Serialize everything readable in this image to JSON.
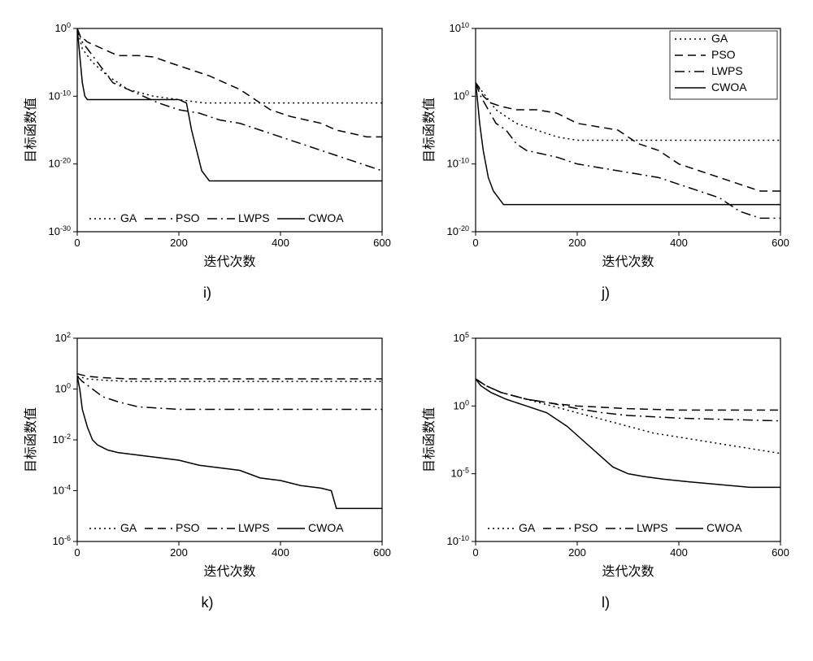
{
  "global": {
    "x_label": "迭代次数",
    "y_label": "目标函数值",
    "legend": [
      "GA",
      "PSO",
      "LWPS",
      "CWOA"
    ],
    "line_styles": [
      "dotted",
      "dashed",
      "dashdot",
      "solid"
    ],
    "line_color": "#000000",
    "background_color": "#ffffff",
    "axis_color": "#000000",
    "grid_color": "#e5e5e5",
    "label_fontsize": 16,
    "tick_fontsize": 13,
    "legend_fontsize": 14,
    "line_width": 1.5,
    "xlim": [
      0,
      600
    ],
    "xticks": [
      0,
      200,
      400,
      600
    ]
  },
  "charts": {
    "i": {
      "sub": "i)",
      "ylim": [
        -30,
        0
      ],
      "yticks": [
        -30,
        -20,
        -10,
        0
      ],
      "ytick_labels": [
        "10^-30",
        "10^-20",
        "10^-10",
        "10^0"
      ],
      "legend_pos": "bottom",
      "series": {
        "GA": [
          [
            0,
            0
          ],
          [
            10,
            -3
          ],
          [
            30,
            -5
          ],
          [
            60,
            -7
          ],
          [
            100,
            -9
          ],
          [
            150,
            -10
          ],
          [
            200,
            -10.5
          ],
          [
            250,
            -11
          ],
          [
            300,
            -11
          ],
          [
            400,
            -11
          ],
          [
            500,
            -11
          ],
          [
            600,
            -11
          ]
        ],
        "PSO": [
          [
            0,
            0
          ],
          [
            5,
            -1
          ],
          [
            20,
            -2
          ],
          [
            50,
            -3
          ],
          [
            80,
            -4
          ],
          [
            120,
            -4
          ],
          [
            150,
            -4.2
          ],
          [
            180,
            -5
          ],
          [
            220,
            -6
          ],
          [
            260,
            -7
          ],
          [
            290,
            -8
          ],
          [
            320,
            -9
          ],
          [
            340,
            -10
          ],
          [
            360,
            -11
          ],
          [
            380,
            -12
          ],
          [
            400,
            -12.5
          ],
          [
            420,
            -13
          ],
          [
            450,
            -13.5
          ],
          [
            480,
            -14
          ],
          [
            510,
            -15
          ],
          [
            540,
            -15.5
          ],
          [
            570,
            -16
          ],
          [
            600,
            -16
          ]
        ],
        "LWPS": [
          [
            0,
            0
          ],
          [
            10,
            -2
          ],
          [
            30,
            -4
          ],
          [
            50,
            -6
          ],
          [
            70,
            -8
          ],
          [
            100,
            -9
          ],
          [
            130,
            -10
          ],
          [
            160,
            -11
          ],
          [
            200,
            -12
          ],
          [
            240,
            -12.5
          ],
          [
            280,
            -13.5
          ],
          [
            320,
            -14
          ],
          [
            360,
            -15
          ],
          [
            400,
            -16
          ],
          [
            440,
            -17
          ],
          [
            480,
            -18
          ],
          [
            520,
            -19
          ],
          [
            560,
            -20
          ],
          [
            600,
            -21
          ]
        ],
        "CWOA": [
          [
            0,
            0
          ],
          [
            5,
            -4
          ],
          [
            10,
            -8
          ],
          [
            15,
            -10
          ],
          [
            20,
            -10.5
          ],
          [
            100,
            -10.5
          ],
          [
            150,
            -10.5
          ],
          [
            200,
            -10.5
          ],
          [
            215,
            -11
          ],
          [
            225,
            -15
          ],
          [
            235,
            -18
          ],
          [
            245,
            -21
          ],
          [
            255,
            -22
          ],
          [
            260,
            -22.5
          ],
          [
            300,
            -22.5
          ],
          [
            400,
            -22.5
          ],
          [
            500,
            -22.5
          ],
          [
            600,
            -22.5
          ]
        ]
      }
    },
    "j": {
      "sub": "j)",
      "ylim": [
        -20,
        10
      ],
      "yticks": [
        -20,
        -10,
        0,
        10
      ],
      "ytick_labels": [
        "10^-20",
        "10^-10",
        "10^0",
        "10^10"
      ],
      "legend_pos": "top-right",
      "series": {
        "GA": [
          [
            0,
            2
          ],
          [
            10,
            1
          ],
          [
            20,
            0
          ],
          [
            40,
            -2
          ],
          [
            60,
            -3
          ],
          [
            80,
            -4
          ],
          [
            120,
            -5
          ],
          [
            160,
            -6
          ],
          [
            200,
            -6.5
          ],
          [
            300,
            -6.5
          ],
          [
            400,
            -6.5
          ],
          [
            500,
            -6.5
          ],
          [
            600,
            -6.5
          ]
        ],
        "PSO": [
          [
            0,
            2
          ],
          [
            5,
            1.5
          ],
          [
            15,
            0
          ],
          [
            30,
            -1
          ],
          [
            50,
            -1.5
          ],
          [
            80,
            -2
          ],
          [
            120,
            -2
          ],
          [
            160,
            -2.5
          ],
          [
            200,
            -4
          ],
          [
            240,
            -4.5
          ],
          [
            280,
            -5
          ],
          [
            320,
            -7
          ],
          [
            360,
            -8
          ],
          [
            400,
            -10
          ],
          [
            440,
            -11
          ],
          [
            480,
            -12
          ],
          [
            520,
            -13
          ],
          [
            560,
            -14
          ],
          [
            600,
            -14
          ]
        ],
        "LWPS": [
          [
            0,
            2
          ],
          [
            10,
            0
          ],
          [
            25,
            -2
          ],
          [
            40,
            -4
          ],
          [
            60,
            -5
          ],
          [
            80,
            -7
          ],
          [
            100,
            -8
          ],
          [
            130,
            -8.5
          ],
          [
            160,
            -9
          ],
          [
            200,
            -10
          ],
          [
            240,
            -10.5
          ],
          [
            280,
            -11
          ],
          [
            320,
            -11.5
          ],
          [
            360,
            -12
          ],
          [
            400,
            -13
          ],
          [
            440,
            -14
          ],
          [
            480,
            -15
          ],
          [
            520,
            -17
          ],
          [
            560,
            -18
          ],
          [
            600,
            -18
          ]
        ],
        "CWOA": [
          [
            0,
            2
          ],
          [
            3,
            0
          ],
          [
            8,
            -4
          ],
          [
            15,
            -8
          ],
          [
            25,
            -12
          ],
          [
            35,
            -14
          ],
          [
            45,
            -15
          ],
          [
            55,
            -16
          ],
          [
            600,
            -16
          ]
        ]
      }
    },
    "k": {
      "sub": "k)",
      "ylim": [
        -6,
        2
      ],
      "yticks": [
        -6,
        -4,
        -2,
        0,
        2
      ],
      "ytick_labels": [
        "10^-6",
        "10^-4",
        "10^-2",
        "10^0",
        "10^2"
      ],
      "legend_pos": "bottom",
      "series": {
        "GA": [
          [
            0,
            0.5
          ],
          [
            20,
            0.4
          ],
          [
            50,
            0.35
          ],
          [
            100,
            0.3
          ],
          [
            200,
            0.3
          ],
          [
            300,
            0.3
          ],
          [
            400,
            0.3
          ],
          [
            500,
            0.3
          ],
          [
            600,
            0.3
          ]
        ],
        "PSO": [
          [
            0,
            0.6
          ],
          [
            20,
            0.5
          ],
          [
            50,
            0.45
          ],
          [
            100,
            0.4
          ],
          [
            200,
            0.4
          ],
          [
            300,
            0.4
          ],
          [
            400,
            0.4
          ],
          [
            500,
            0.4
          ],
          [
            600,
            0.4
          ]
        ],
        "LWPS": [
          [
            0,
            0.5
          ],
          [
            10,
            0.3
          ],
          [
            30,
            0
          ],
          [
            50,
            -0.3
          ],
          [
            80,
            -0.5
          ],
          [
            120,
            -0.7
          ],
          [
            200,
            -0.8
          ],
          [
            300,
            -0.8
          ],
          [
            400,
            -0.8
          ],
          [
            500,
            -0.8
          ],
          [
            600,
            -0.8
          ]
        ],
        "CWOA": [
          [
            0,
            0.5
          ],
          [
            5,
            0
          ],
          [
            10,
            -0.8
          ],
          [
            20,
            -1.5
          ],
          [
            30,
            -2
          ],
          [
            40,
            -2.2
          ],
          [
            60,
            -2.4
          ],
          [
            80,
            -2.5
          ],
          [
            120,
            -2.6
          ],
          [
            160,
            -2.7
          ],
          [
            200,
            -2.8
          ],
          [
            240,
            -3
          ],
          [
            280,
            -3.1
          ],
          [
            320,
            -3.2
          ],
          [
            360,
            -3.5
          ],
          [
            400,
            -3.6
          ],
          [
            440,
            -3.8
          ],
          [
            480,
            -3.9
          ],
          [
            500,
            -4
          ],
          [
            510,
            -4.7
          ],
          [
            560,
            -4.7
          ],
          [
            600,
            -4.7
          ]
        ]
      }
    },
    "l": {
      "sub": "l)",
      "ylim": [
        -10,
        5
      ],
      "yticks": [
        -10,
        -5,
        0,
        5
      ],
      "ytick_labels": [
        "10^-10",
        "10^-5",
        "10^0",
        "10^5"
      ],
      "legend_pos": "bottom",
      "series": {
        "GA": [
          [
            0,
            2
          ],
          [
            20,
            1.5
          ],
          [
            50,
            1
          ],
          [
            100,
            0.5
          ],
          [
            150,
            0
          ],
          [
            200,
            -0.5
          ],
          [
            250,
            -1
          ],
          [
            300,
            -1.5
          ],
          [
            350,
            -2
          ],
          [
            400,
            -2.3
          ],
          [
            450,
            -2.6
          ],
          [
            500,
            -2.9
          ],
          [
            550,
            -3.2
          ],
          [
            600,
            -3.5
          ]
        ],
        "PSO": [
          [
            0,
            2
          ],
          [
            20,
            1.5
          ],
          [
            50,
            1
          ],
          [
            100,
            0.5
          ],
          [
            150,
            0.2
          ],
          [
            200,
            0
          ],
          [
            300,
            -0.2
          ],
          [
            400,
            -0.3
          ],
          [
            500,
            -0.3
          ],
          [
            600,
            -0.3
          ]
        ],
        "LWPS": [
          [
            0,
            2
          ],
          [
            20,
            1.5
          ],
          [
            50,
            1
          ],
          [
            100,
            0.5
          ],
          [
            150,
            0.2
          ],
          [
            200,
            -0.2
          ],
          [
            250,
            -0.5
          ],
          [
            300,
            -0.7
          ],
          [
            400,
            -0.9
          ],
          [
            500,
            -1
          ],
          [
            600,
            -1.1
          ]
        ],
        "CWOA": [
          [
            0,
            2
          ],
          [
            10,
            1.5
          ],
          [
            30,
            1
          ],
          [
            60,
            0.5
          ],
          [
            100,
            0
          ],
          [
            140,
            -0.5
          ],
          [
            180,
            -1.5
          ],
          [
            210,
            -2.5
          ],
          [
            240,
            -3.5
          ],
          [
            270,
            -4.5
          ],
          [
            300,
            -5
          ],
          [
            330,
            -5.2
          ],
          [
            370,
            -5.4
          ],
          [
            420,
            -5.6
          ],
          [
            480,
            -5.8
          ],
          [
            540,
            -6
          ],
          [
            600,
            -6
          ]
        ]
      }
    }
  }
}
